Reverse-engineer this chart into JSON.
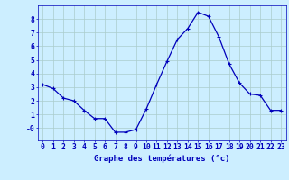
{
  "hours": [
    0,
    1,
    2,
    3,
    4,
    5,
    6,
    7,
    8,
    9,
    10,
    11,
    12,
    13,
    14,
    15,
    16,
    17,
    18,
    19,
    20,
    21,
    22,
    23
  ],
  "temperatures": [
    3.2,
    2.9,
    2.2,
    2.0,
    1.3,
    0.7,
    0.7,
    -0.3,
    -0.3,
    -0.1,
    1.4,
    3.2,
    4.9,
    6.5,
    7.3,
    8.5,
    8.2,
    6.7,
    4.7,
    3.3,
    2.5,
    2.4,
    1.3,
    1.3
  ],
  "line_color": "#0000bb",
  "marker": "+",
  "marker_size": 3,
  "marker_linewidth": 0.8,
  "bg_color": "#cceeff",
  "grid_color": "#aacccc",
  "axis_color": "#0000bb",
  "xlabel": "Graphe des températures (°c)",
  "xlabel_fontsize": 6.5,
  "ylabel_ticks": [
    0,
    1,
    2,
    3,
    4,
    5,
    6,
    7,
    8
  ],
  "ylim": [
    -0.9,
    9.0
  ],
  "xlim": [
    -0.5,
    23.5
  ],
  "tick_fontsize": 5.8,
  "linewidth": 0.9
}
